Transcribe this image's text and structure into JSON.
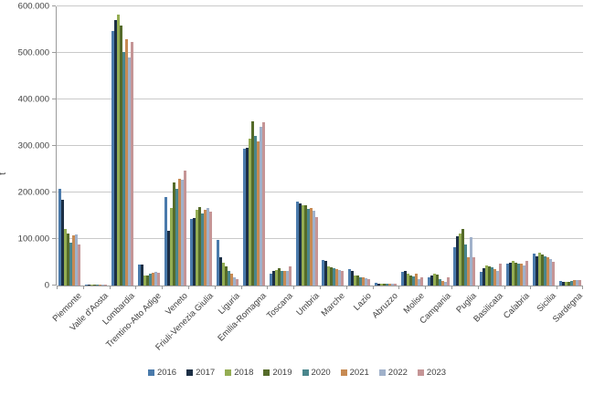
{
  "chart_data": {
    "type": "bar",
    "title": "",
    "xlabel": "",
    "ylabel": "t",
    "ylim": [
      0,
      600000
    ],
    "ytick_step": 100000,
    "ytick_labels": [
      "0",
      "100.000",
      "200.000",
      "300.000",
      "400.000",
      "500.000",
      "600.000"
    ],
    "grid": true,
    "legend_position": "bottom",
    "categories": [
      "Piemonte",
      "Valle d'Aosta",
      "Lombardia",
      "Trentino-Alto Adige",
      "Veneto",
      "Friuli-Venezia Giulia",
      "Liguria",
      "Emilia-Romagna",
      "Toscana",
      "Umbria",
      "Marche",
      "Lazio",
      "Abruzzo",
      "Molise",
      "Campania",
      "Puglia",
      "Basilicata",
      "Calabria",
      "Sicilia",
      "Sardegna"
    ],
    "series": [
      {
        "name": "2016",
        "color": "#4a7aab",
        "values": [
          208000,
          1500,
          548000,
          46000,
          190000,
          143000,
          98000,
          294000,
          26000,
          181000,
          55000,
          35000,
          5000,
          30000,
          18000,
          83000,
          30000,
          48000,
          68000,
          9000
        ]
      },
      {
        "name": "2017",
        "color": "#1c2f45",
        "values": [
          185000,
          1200,
          570000,
          45000,
          118000,
          145000,
          60000,
          296000,
          32000,
          177000,
          53000,
          31000,
          4000,
          31000,
          21000,
          106000,
          38000,
          49000,
          63000,
          8000
        ]
      },
      {
        "name": "2018",
        "color": "#94ad53",
        "values": [
          121000,
          1000,
          583000,
          22000,
          167000,
          162000,
          49000,
          316000,
          33000,
          172000,
          42000,
          22000,
          4000,
          26000,
          26000,
          112000,
          43000,
          52000,
          71000,
          8000
        ]
      },
      {
        "name": "2019",
        "color": "#556b2a",
        "values": [
          111000,
          1000,
          558000,
          21000,
          222000,
          168000,
          42000,
          352000,
          37000,
          173000,
          40000,
          21000,
          3000,
          22000,
          23000,
          121000,
          42000,
          49000,
          67000,
          8000
        ]
      },
      {
        "name": "2020",
        "color": "#4a868c",
        "values": [
          93000,
          800,
          501000,
          25000,
          208000,
          154000,
          31000,
          322000,
          31000,
          165000,
          37000,
          18000,
          3000,
          19000,
          13000,
          88000,
          39000,
          47000,
          63000,
          9000
        ]
      },
      {
        "name": "2021",
        "color": "#c78a53",
        "values": [
          108000,
          1000,
          530000,
          28000,
          230000,
          163000,
          26000,
          310000,
          31000,
          166000,
          36000,
          17000,
          3000,
          26000,
          10000,
          61000,
          35000,
          48000,
          60000,
          11000
        ]
      },
      {
        "name": "2022",
        "color": "#a0b1ca",
        "values": [
          109000,
          1200,
          491000,
          29000,
          227000,
          166000,
          18000,
          342000,
          32000,
          160000,
          33000,
          15000,
          3000,
          13000,
          8000,
          103000,
          32000,
          43000,
          56000,
          12000
        ]
      },
      {
        "name": "2023",
        "color": "#c59596",
        "values": [
          89000,
          1000,
          524000,
          27000,
          247000,
          159000,
          14000,
          350000,
          42000,
          148000,
          31000,
          13000,
          4000,
          17000,
          17000,
          61000,
          47000,
          53000,
          50000,
          12000
        ]
      }
    ]
  }
}
